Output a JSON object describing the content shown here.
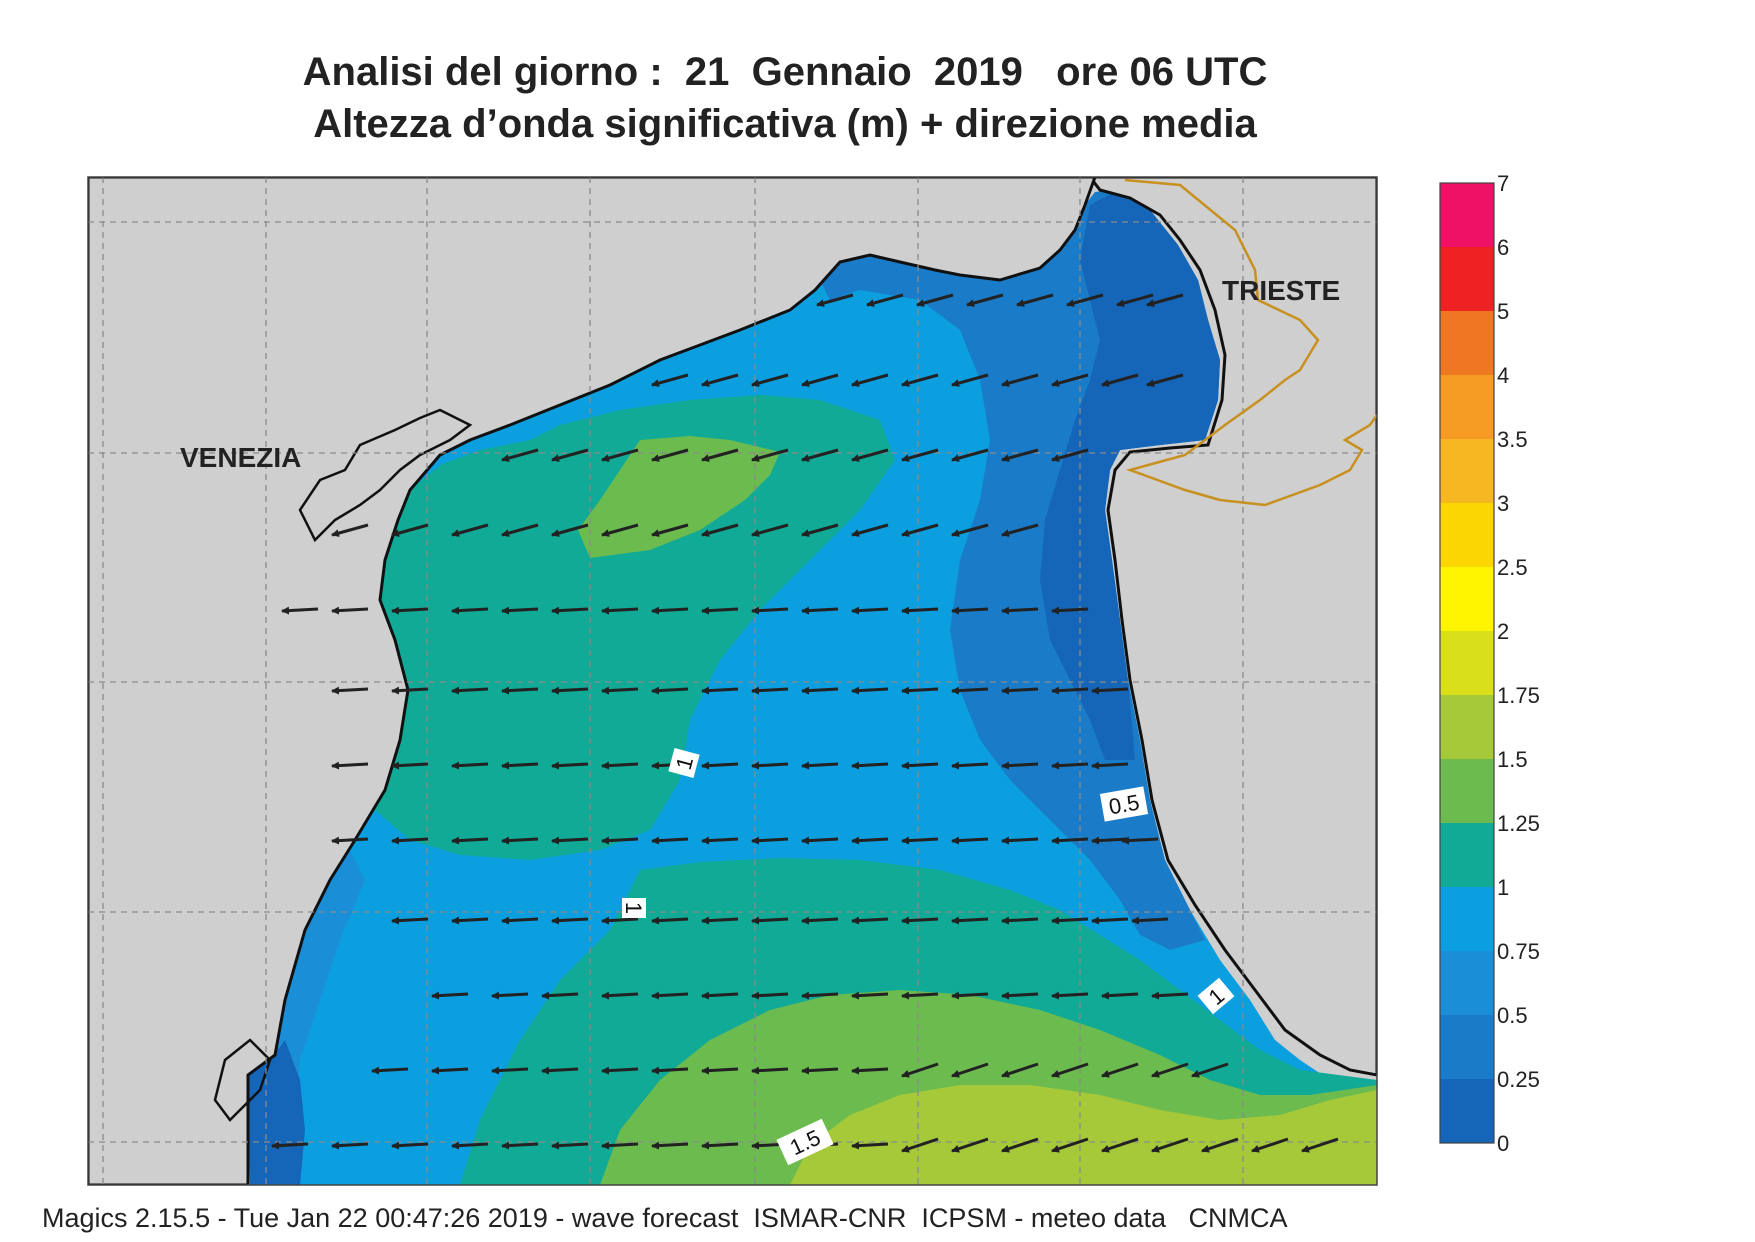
{
  "title": {
    "line1": "Analisi del giorno :  21  Gennaio  2019   ore 06 UTC",
    "line2": "Altezza d’onda significativa (m) + direzione media"
  },
  "cities": {
    "venezia": "VENEZIA",
    "trieste": "TRIESTE"
  },
  "contour_labels": {
    "l1": "1",
    "l2": "0.5",
    "l3": "1",
    "l4": "1",
    "l5": "1.5"
  },
  "colorbar": {
    "ticks": [
      "7",
      "6",
      "5",
      "4",
      "3.5",
      "3",
      "2.5",
      "2",
      "1.75",
      "1.5",
      "1.25",
      "1",
      "0.75",
      "0.5",
      "0.25",
      "0"
    ],
    "colors": [
      "#ee1166",
      "#ee2222",
      "#f07722",
      "#f59a22",
      "#f7b722",
      "#fcd600",
      "#fff500",
      "#d9e019",
      "#a6c93a",
      "#6cbb4f",
      "#10aa96",
      "#0b9fe0",
      "#1a8fd8",
      "#1a7cc8",
      "#1565b8"
    ]
  },
  "legend_colors": {
    "land": "#cfcfcf",
    "border": "#c8901e",
    "grid": "#8a8a8a"
  },
  "footer": "Magics 2.15.5 - Tue Jan 22 00:47:26 2019 - wave forecast  ISMAR-CNR  ICPSM - meteo data   CNMCA"
}
